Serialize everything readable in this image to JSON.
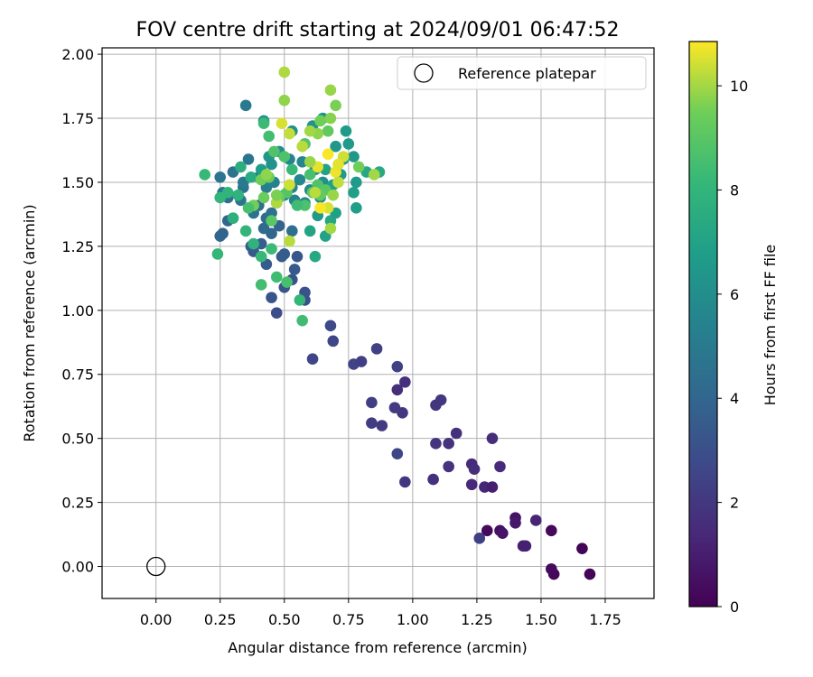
{
  "chart_data": {
    "type": "scatter",
    "title": "FOV centre drift starting at 2024/09/01 06:47:52",
    "xlabel": "Angular distance from reference (arcmin)",
    "ylabel": "Rotation from reference (arcmin)",
    "xlim": [
      -0.21,
      1.94
    ],
    "ylim": [
      -0.125,
      2.025
    ],
    "xticks": [
      0.0,
      0.25,
      0.5,
      0.75,
      1.0,
      1.25,
      1.5,
      1.75
    ],
    "xtick_labels": [
      "0.00",
      "0.25",
      "0.50",
      "0.75",
      "1.00",
      "1.25",
      "1.50",
      "1.75"
    ],
    "yticks": [
      0.0,
      0.25,
      0.5,
      0.75,
      1.0,
      1.25,
      1.5,
      1.75,
      2.0
    ],
    "ytick_labels": [
      "0.00",
      "0.25",
      "0.50",
      "0.75",
      "1.00",
      "1.25",
      "1.50",
      "1.75",
      "2.00"
    ],
    "grid": true,
    "legend": {
      "position": "top-right",
      "entries": [
        "Reference platepar"
      ]
    },
    "reference_point": {
      "x": 0.0,
      "y": 0.0,
      "label": "Reference platepar"
    },
    "colorbar": {
      "label": "Hours from first FF file",
      "colormap": "viridis",
      "range": [
        0,
        10.85
      ],
      "ticks": [
        0,
        2,
        4,
        6,
        8,
        10
      ],
      "tick_labels": [
        "0",
        "2",
        "4",
        "6",
        "8",
        "10"
      ]
    },
    "points": [
      [
        1.69,
        -0.03,
        0.1
      ],
      [
        1.55,
        -0.03,
        0.2
      ],
      [
        1.54,
        -0.01,
        0.3
      ],
      [
        1.66,
        0.07,
        0.15
      ],
      [
        1.54,
        0.14,
        0.25
      ],
      [
        1.48,
        0.18,
        1.3
      ],
      [
        1.4,
        0.19,
        0.6
      ],
      [
        1.4,
        0.17,
        0.8
      ],
      [
        1.43,
        0.08,
        1.0
      ],
      [
        1.44,
        0.08,
        1.1
      ],
      [
        1.34,
        0.14,
        0.5
      ],
      [
        1.35,
        0.13,
        0.7
      ],
      [
        1.29,
        0.14,
        0.3
      ],
      [
        1.26,
        0.11,
        2.3
      ],
      [
        1.28,
        0.31,
        1.3
      ],
      [
        1.31,
        0.31,
        1.0
      ],
      [
        1.23,
        0.32,
        1.4
      ],
      [
        1.34,
        0.39,
        1.5
      ],
      [
        1.23,
        0.4,
        1.5
      ],
      [
        1.24,
        0.38,
        1.6
      ],
      [
        1.31,
        0.5,
        1.6
      ],
      [
        1.17,
        0.52,
        1.7
      ],
      [
        1.14,
        0.48,
        1.8
      ],
      [
        1.14,
        0.39,
        1.8
      ],
      [
        1.09,
        0.48,
        1.9
      ],
      [
        1.08,
        0.34,
        1.7
      ],
      [
        1.11,
        0.65,
        2.0
      ],
      [
        1.09,
        0.63,
        1.9
      ],
      [
        0.97,
        0.72,
        1.7
      ],
      [
        0.94,
        0.69,
        1.6
      ],
      [
        0.96,
        0.6,
        2.0
      ],
      [
        0.93,
        0.62,
        2.1
      ],
      [
        0.97,
        0.33,
        1.9
      ],
      [
        0.94,
        0.44,
        2.6
      ],
      [
        0.88,
        0.55,
        2.1
      ],
      [
        0.84,
        0.56,
        2.2
      ],
      [
        0.84,
        0.64,
        2.3
      ],
      [
        0.94,
        0.78,
        2.4
      ],
      [
        0.77,
        0.79,
        2.5
      ],
      [
        0.8,
        0.8,
        2.3
      ],
      [
        0.86,
        0.85,
        2.4
      ],
      [
        0.69,
        0.88,
        2.6
      ],
      [
        0.68,
        0.94,
        2.7
      ],
      [
        0.61,
        0.81,
        2.6
      ],
      [
        0.47,
        0.99,
        2.9
      ],
      [
        0.58,
        1.04,
        3.0
      ],
      [
        0.58,
        1.07,
        3.1
      ],
      [
        0.53,
        1.12,
        3.2
      ],
      [
        0.5,
        1.09,
        3.3
      ],
      [
        0.54,
        1.16,
        3.4
      ],
      [
        0.45,
        1.05,
        3.2
      ],
      [
        0.55,
        1.21,
        3.3
      ],
      [
        0.49,
        1.21,
        3.4
      ],
      [
        0.5,
        1.22,
        3.6
      ],
      [
        0.43,
        1.18,
        3.5
      ],
      [
        0.38,
        1.23,
        3.4
      ],
      [
        0.37,
        1.25,
        3.6
      ],
      [
        0.41,
        1.26,
        3.7
      ],
      [
        0.26,
        1.3,
        3.8
      ],
      [
        0.25,
        1.29,
        3.9
      ],
      [
        0.28,
        1.35,
        4.0
      ],
      [
        0.3,
        1.36,
        4.1
      ],
      [
        0.42,
        1.32,
        4.2
      ],
      [
        0.45,
        1.3,
        4.0
      ],
      [
        0.48,
        1.33,
        3.9
      ],
      [
        0.53,
        1.31,
        4.4
      ],
      [
        0.43,
        1.36,
        4.3
      ],
      [
        0.45,
        1.38,
        4.5
      ],
      [
        0.47,
        1.42,
        4.6
      ],
      [
        0.4,
        1.41,
        4.4
      ],
      [
        0.38,
        1.38,
        4.7
      ],
      [
        0.33,
        1.43,
        4.8
      ],
      [
        0.28,
        1.44,
        4.5
      ],
      [
        0.26,
        1.46,
        4.9
      ],
      [
        0.34,
        1.48,
        4.6
      ],
      [
        0.34,
        1.5,
        5.0
      ],
      [
        0.3,
        1.54,
        4.7
      ],
      [
        0.25,
        1.52,
        4.8
      ],
      [
        0.36,
        1.59,
        4.8
      ],
      [
        0.35,
        1.8,
        5.0
      ],
      [
        0.4,
        1.52,
        5.1
      ],
      [
        0.43,
        1.48,
        5.2
      ],
      [
        0.46,
        1.5,
        5.3
      ],
      [
        0.5,
        1.45,
        5.4
      ],
      [
        0.54,
        1.43,
        5.5
      ],
      [
        0.58,
        1.42,
        5.6
      ],
      [
        0.53,
        1.48,
        5.4
      ],
      [
        0.56,
        1.51,
        5.7
      ],
      [
        0.6,
        1.47,
        5.8
      ],
      [
        0.64,
        1.44,
        5.9
      ],
      [
        0.65,
        1.5,
        6.0
      ],
      [
        0.62,
        1.55,
        5.8
      ],
      [
        0.57,
        1.58,
        5.6
      ],
      [
        0.52,
        1.59,
        5.5
      ],
      [
        0.48,
        1.62,
        5.9
      ],
      [
        0.53,
        1.7,
        6.1
      ],
      [
        0.58,
        1.65,
        6.0
      ],
      [
        0.61,
        1.72,
        6.2
      ],
      [
        0.65,
        1.75,
        6.3
      ],
      [
        0.7,
        1.64,
        6.4
      ],
      [
        0.73,
        1.59,
        6.5
      ],
      [
        0.75,
        1.65,
        6.6
      ],
      [
        0.77,
        1.6,
        6.5
      ],
      [
        0.74,
        1.7,
        6.7
      ],
      [
        0.78,
        1.5,
        6.6
      ],
      [
        0.77,
        1.46,
        6.8
      ],
      [
        0.72,
        1.53,
        6.7
      ],
      [
        0.69,
        1.49,
        6.9
      ],
      [
        0.66,
        1.55,
        7.0
      ],
      [
        0.63,
        1.37,
        6.5
      ],
      [
        0.66,
        1.29,
        7.0
      ],
      [
        0.6,
        1.31,
        7.1
      ],
      [
        0.62,
        1.21,
        7.3
      ],
      [
        0.68,
        1.35,
        7.2
      ],
      [
        0.7,
        1.38,
        6.9
      ],
      [
        0.78,
        1.4,
        6.8
      ],
      [
        0.82,
        1.54,
        7.3
      ],
      [
        0.87,
        1.54,
        7.4
      ],
      [
        0.42,
        1.74,
        6.3
      ],
      [
        0.44,
        1.6,
        6.4
      ],
      [
        0.45,
        1.57,
        6.2
      ],
      [
        0.41,
        1.55,
        6.8
      ],
      [
        0.37,
        1.52,
        7.5
      ],
      [
        0.33,
        1.56,
        7.6
      ],
      [
        0.32,
        1.45,
        7.8
      ],
      [
        0.28,
        1.46,
        7.9
      ],
      [
        0.25,
        1.44,
        8.0
      ],
      [
        0.19,
        1.53,
        8.2
      ],
      [
        0.24,
        1.22,
        8.1
      ],
      [
        0.3,
        1.36,
        7.7
      ],
      [
        0.35,
        1.31,
        8.0
      ],
      [
        0.38,
        1.26,
        7.8
      ],
      [
        0.41,
        1.21,
        8.2
      ],
      [
        0.45,
        1.24,
        8.3
      ],
      [
        0.41,
        1.1,
        8.5
      ],
      [
        0.47,
        1.13,
        8.4
      ],
      [
        0.51,
        1.11,
        8.6
      ],
      [
        0.56,
        1.04,
        8.1
      ],
      [
        0.57,
        0.96,
        8.4
      ],
      [
        0.42,
        1.73,
        8.3
      ],
      [
        0.44,
        1.68,
        8.5
      ],
      [
        0.46,
        1.62,
        8.8
      ],
      [
        0.5,
        1.6,
        8.7
      ],
      [
        0.53,
        1.55,
        8.2
      ],
      [
        0.58,
        1.65,
        8.9
      ],
      [
        0.6,
        1.53,
        8.6
      ],
      [
        0.63,
        1.49,
        8.8
      ],
      [
        0.66,
        1.47,
        9.0
      ],
      [
        0.64,
        1.45,
        9.2
      ],
      [
        0.61,
        1.46,
        9.1
      ],
      [
        0.58,
        1.41,
        8.7
      ],
      [
        0.55,
        1.41,
        8.4
      ],
      [
        0.51,
        1.46,
        8.9
      ],
      [
        0.48,
        1.44,
        9.3
      ],
      [
        0.45,
        1.35,
        9.0
      ],
      [
        0.42,
        1.44,
        9.4
      ],
      [
        0.38,
        1.41,
        9.5
      ],
      [
        0.36,
        1.4,
        8.6
      ],
      [
        0.44,
        1.52,
        9.4
      ],
      [
        0.41,
        1.51,
        9.5
      ],
      [
        0.43,
        1.53,
        9.8
      ],
      [
        0.64,
        1.74,
        9.5
      ],
      [
        0.67,
        1.7,
        9.2
      ],
      [
        0.68,
        1.86,
        9.9
      ],
      [
        0.7,
        1.8,
        9.6
      ],
      [
        0.68,
        1.75,
        9.7
      ],
      [
        0.63,
        1.69,
        9.8
      ],
      [
        0.6,
        1.7,
        10.0
      ],
      [
        0.57,
        1.64,
        10.2
      ],
      [
        0.52,
        1.69,
        10.3
      ],
      [
        0.49,
        1.73,
        10.5
      ],
      [
        0.5,
        1.82,
        9.8
      ],
      [
        0.5,
        1.93,
        10.1
      ],
      [
        0.47,
        1.42,
        10.1
      ],
      [
        0.47,
        1.45,
        9.6
      ],
      [
        0.52,
        1.49,
        10.4
      ],
      [
        0.52,
        1.27,
        10.2
      ],
      [
        0.63,
        1.56,
        10.6
      ],
      [
        0.67,
        1.61,
        10.8
      ],
      [
        0.7,
        1.54,
        10.7
      ],
      [
        0.73,
        1.6,
        10.4
      ],
      [
        0.71,
        1.57,
        10.6
      ],
      [
        0.71,
        1.5,
        10.3
      ],
      [
        0.69,
        1.45,
        9.9
      ],
      [
        0.67,
        1.4,
        10.5
      ],
      [
        0.68,
        1.32,
        10.0
      ],
      [
        0.64,
        1.4,
        10.8
      ],
      [
        0.62,
        1.46,
        10.2
      ],
      [
        0.79,
        1.56,
        9.5
      ],
      [
        0.85,
        1.53,
        10.0
      ],
      [
        0.6,
        1.58,
        9.9
      ]
    ]
  }
}
